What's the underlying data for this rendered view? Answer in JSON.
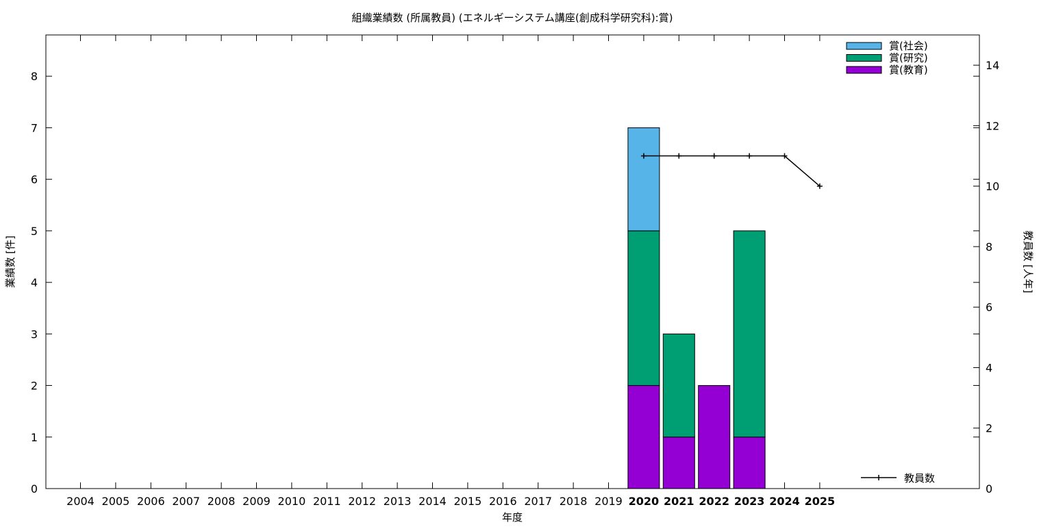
{
  "chart_data": {
    "type": "bar",
    "title": "組織業績数 (所属教員) (エネルギーシステム講座(創成科学研究科):賞)",
    "xlabel": "年度",
    "ylabel": "業績数 [件]",
    "y2label": "教員数 [人年]",
    "categories": [
      "2004",
      "2005",
      "2006",
      "2007",
      "2008",
      "2009",
      "2010",
      "2011",
      "2012",
      "2013",
      "2014",
      "2015",
      "2016",
      "2017",
      "2018",
      "2019",
      "2020",
      "2021",
      "2022",
      "2023",
      "2024",
      "2025"
    ],
    "bold_categories": [
      "2020",
      "2021",
      "2022",
      "2023",
      "2024",
      "2025"
    ],
    "ylim": [
      0,
      8.8
    ],
    "yticks": [
      0,
      1,
      2,
      3,
      4,
      5,
      6,
      7,
      8
    ],
    "y2lim": [
      0,
      15.0
    ],
    "y2ticks": [
      0,
      2,
      4,
      6,
      8,
      10,
      12,
      14
    ],
    "stacked": true,
    "series": [
      {
        "name": "賞(教育)",
        "color": "#9400d3",
        "values": [
          0,
          0,
          0,
          0,
          0,
          0,
          0,
          0,
          0,
          0,
          0,
          0,
          0,
          0,
          0,
          0,
          2,
          1,
          2,
          1,
          0,
          0
        ]
      },
      {
        "name": "賞(研究)",
        "color": "#009e73",
        "values": [
          0,
          0,
          0,
          0,
          0,
          0,
          0,
          0,
          0,
          0,
          0,
          0,
          0,
          0,
          0,
          0,
          3,
          2,
          0,
          4,
          0,
          0
        ]
      },
      {
        "name": "賞(社会)",
        "color": "#56b4e9",
        "values": [
          0,
          0,
          0,
          0,
          0,
          0,
          0,
          0,
          0,
          0,
          0,
          0,
          0,
          0,
          0,
          0,
          2,
          0,
          0,
          0,
          0,
          0
        ]
      }
    ],
    "line_series": {
      "name": "教員数",
      "color": "#000000",
      "axis": "y2",
      "points": [
        {
          "x": "2020",
          "y": 11
        },
        {
          "x": "2021",
          "y": 11
        },
        {
          "x": "2022",
          "y": 11
        },
        {
          "x": "2023",
          "y": 11
        },
        {
          "x": "2024",
          "y": 11
        },
        {
          "x": "2025",
          "y": 10
        }
      ]
    },
    "legend": {
      "bars_position": "top-right",
      "line_position": "bottom-right",
      "bar_order": [
        "賞(社会)",
        "賞(研究)",
        "賞(教育)"
      ]
    },
    "grid": false
  }
}
